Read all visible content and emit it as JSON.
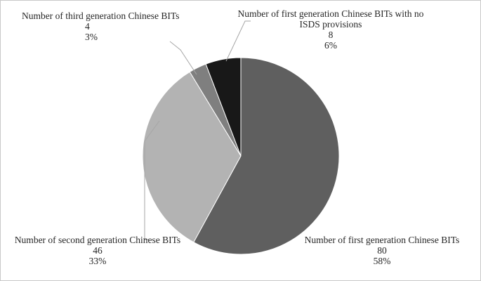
{
  "chart_data": {
    "type": "pie",
    "start_angle_deg": 0,
    "direction": "clockwise",
    "slices": [
      {
        "label": "Number of first generation Chinese BITs",
        "value": 80,
        "percent": "58%",
        "color": "#5f5f5f"
      },
      {
        "label": "Number of second generation Chinese BITs",
        "value": 46,
        "percent": "33%",
        "color": "#b3b3b3"
      },
      {
        "label": "Number of third generation Chinese BITs",
        "value": 4,
        "percent": "3%",
        "color": "#7f7f7f"
      },
      {
        "label": "Number of first generation Chinese BITs with no ISDS provisions",
        "value": 8,
        "percent": "6%",
        "color": "#181818"
      }
    ],
    "label_lines": [
      [
        "Number of first generation Chinese BITs",
        "80",
        "58%"
      ],
      [
        "Number of second generation Chinese BITs",
        "46",
        "33%"
      ],
      [
        "Number of third generation Chinese BITs",
        "4",
        "3%"
      ],
      [
        "Number of first generation Chinese BITs with no",
        "ISDS provisions",
        "8",
        "6%"
      ]
    ]
  }
}
